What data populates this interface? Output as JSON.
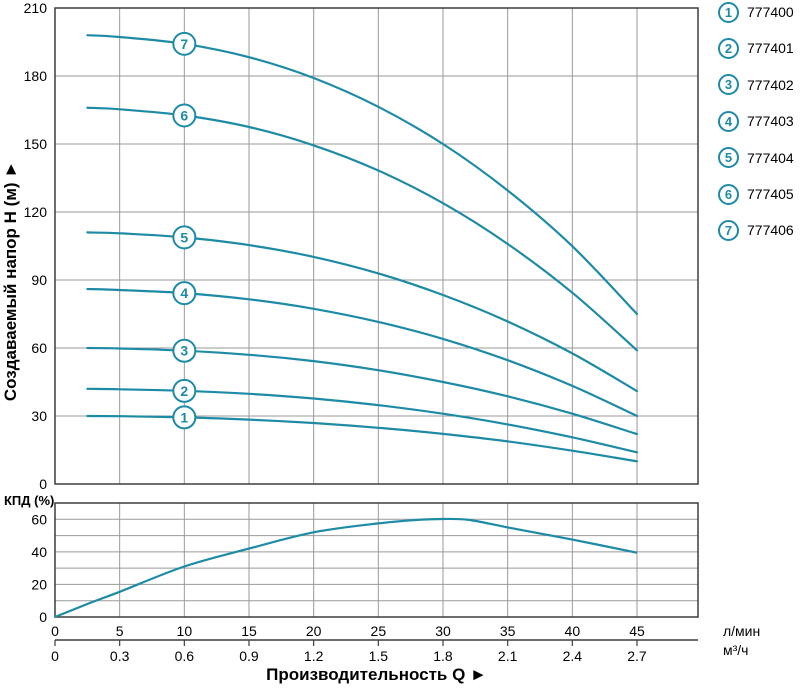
{
  "colors": {
    "curve": "#1e8ba6",
    "grid": "#9a9a9a",
    "border": "#3d3d3d",
    "text": "#000000",
    "background": "#ffffff"
  },
  "legend": {
    "items": [
      {
        "num": "1",
        "code": "777400"
      },
      {
        "num": "2",
        "code": "777401"
      },
      {
        "num": "3",
        "code": "777402"
      },
      {
        "num": "4",
        "code": "777403"
      },
      {
        "num": "5",
        "code": "777404"
      },
      {
        "num": "6",
        "code": "777405"
      },
      {
        "num": "7",
        "code": "777406"
      }
    ]
  },
  "chart_data": [
    {
      "type": "line",
      "name": "head-vs-flow",
      "title": "",
      "ylabel": "Создаваемый напор H (м) ►",
      "xlabel": "Производительность Q ►",
      "x_unit_lmin": "л/мин",
      "x_unit_m3h": "м³/ч",
      "xlim": [
        0,
        49.7
      ],
      "ylim": [
        0,
        210
      ],
      "y_ticks": [
        0,
        30,
        60,
        90,
        120,
        150,
        180,
        210
      ],
      "x_ticks_lmin": [
        "0",
        "5",
        "10",
        "15",
        "20",
        "25",
        "30",
        "35",
        "40",
        "45"
      ],
      "x_ticks_m3h": [
        "0",
        "0.3",
        "0.6",
        "0.9",
        "1.2",
        "1.5",
        "1.8",
        "2.1",
        "2.4",
        "2.7"
      ],
      "grid": true,
      "legend_position": "right",
      "marker_q": 10,
      "series": [
        {
          "label": "1",
          "code": "777400",
          "points": [
            [
              2.5,
              30
            ],
            [
              5,
              29.9
            ],
            [
              10,
              29.4
            ],
            [
              15,
              28.4
            ],
            [
              20,
              26.9
            ],
            [
              25,
              24.8
            ],
            [
              30,
              22.1
            ],
            [
              35,
              18.8
            ],
            [
              40,
              14.7
            ],
            [
              45,
              10
            ]
          ]
        },
        {
          "label": "2",
          "code": "777401",
          "points": [
            [
              2.5,
              42
            ],
            [
              5,
              41.8
            ],
            [
              10,
              41.1
            ],
            [
              15,
              39.8
            ],
            [
              20,
              37.7
            ],
            [
              25,
              34.8
            ],
            [
              30,
              31
            ],
            [
              35,
              26.3
            ],
            [
              40,
              20.6
            ],
            [
              45,
              14
            ]
          ]
        },
        {
          "label": "3",
          "code": "777402",
          "points": [
            [
              2.5,
              60
            ],
            [
              5,
              59.8
            ],
            [
              10,
              58.8
            ],
            [
              15,
              57
            ],
            [
              20,
              54.2
            ],
            [
              25,
              50.2
            ],
            [
              30,
              45
            ],
            [
              35,
              38.7
            ],
            [
              40,
              31
            ],
            [
              45,
              22
            ]
          ]
        },
        {
          "label": "4",
          "code": "777403",
          "points": [
            [
              2.5,
              86
            ],
            [
              5,
              85.6
            ],
            [
              10,
              84.2
            ],
            [
              15,
              81.5
            ],
            [
              20,
              77.3
            ],
            [
              25,
              71.5
            ],
            [
              30,
              64
            ],
            [
              35,
              54.6
            ],
            [
              40,
              43.3
            ],
            [
              45,
              30
            ]
          ]
        },
        {
          "label": "5",
          "code": "777404",
          "points": [
            [
              2.5,
              111
            ],
            [
              5,
              110.6
            ],
            [
              10,
              108.8
            ],
            [
              15,
              105.4
            ],
            [
              20,
              100.2
            ],
            [
              25,
              92.9
            ],
            [
              30,
              83.4
            ],
            [
              35,
              71.7
            ],
            [
              40,
              57.6
            ],
            [
              45,
              41
            ]
          ]
        },
        {
          "label": "6",
          "code": "777405",
          "points": [
            [
              2.5,
              166
            ],
            [
              5,
              165.3
            ],
            [
              10,
              162.6
            ],
            [
              15,
              157.5
            ],
            [
              20,
              149.4
            ],
            [
              25,
              138.3
            ],
            [
              30,
              123.9
            ],
            [
              35,
              105.9
            ],
            [
              40,
              84.4
            ],
            [
              45,
              59
            ]
          ]
        },
        {
          "label": "7",
          "code": "777406",
          "points": [
            [
              2.5,
              198
            ],
            [
              5,
              197.2
            ],
            [
              10,
              194.2
            ],
            [
              15,
              188.3
            ],
            [
              20,
              179.1
            ],
            [
              25,
              166.4
            ],
            [
              30,
              150
            ],
            [
              35,
              129.5
            ],
            [
              40,
              104.9
            ],
            [
              45,
              75
            ]
          ]
        }
      ]
    },
    {
      "type": "line",
      "name": "efficiency",
      "ylabel": "КПД (%)",
      "xlim": [
        0,
        49.7
      ],
      "ylim": [
        0,
        70
      ],
      "y_grid_step": 10,
      "y_tick_labels": [
        0,
        20,
        40,
        60
      ],
      "grid": true,
      "points": [
        [
          0,
          0
        ],
        [
          2.5,
          8
        ],
        [
          5,
          15.5
        ],
        [
          10,
          31
        ],
        [
          15,
          42
        ],
        [
          20,
          52
        ],
        [
          25,
          57.5
        ],
        [
          28,
          59.6
        ],
        [
          30,
          60.2
        ],
        [
          32,
          59.6
        ],
        [
          35,
          55
        ],
        [
          40,
          47.5
        ],
        [
          45,
          39.5
        ]
      ]
    }
  ]
}
